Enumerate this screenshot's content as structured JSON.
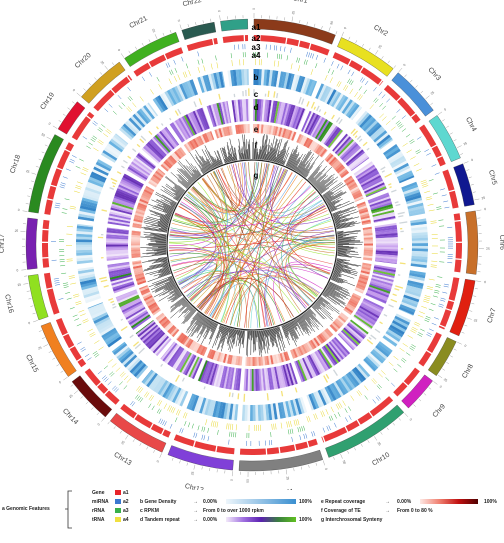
{
  "chromosomes": [
    {
      "name": "Chr1",
      "length": 55
    },
    {
      "name": "Chr2",
      "length": 40
    },
    {
      "name": "Chr3",
      "length": 34
    },
    {
      "name": "Chr4",
      "length": 32
    },
    {
      "name": "Chr5",
      "length": 28
    },
    {
      "name": "Chr6",
      "length": 42
    },
    {
      "name": "Chr7",
      "length": 38
    },
    {
      "name": "Chr8",
      "length": 26
    },
    {
      "name": "Chr9",
      "length": 24
    },
    {
      "name": "Chr10",
      "length": 58
    },
    {
      "name": "Chr11",
      "length": 56
    },
    {
      "name": "Chr12",
      "length": 44
    },
    {
      "name": "Chr13",
      "length": 40
    },
    {
      "name": "Chr14",
      "length": 32
    },
    {
      "name": "Chr15",
      "length": 38
    },
    {
      "name": "Chr16",
      "length": 30
    },
    {
      "name": "Chr17",
      "length": 34
    },
    {
      "name": "Chr18",
      "length": 54
    },
    {
      "name": "Chr19",
      "length": 22
    },
    {
      "name": "Chr20",
      "length": 34
    },
    {
      "name": "Chr21",
      "length": 38
    },
    {
      "name": "Chr22",
      "length": 22
    },
    {
      "name": "Chr23",
      "length": 18
    }
  ],
  "chromosome_colors": [
    "#8b3a1a",
    "#e8e020",
    "#4a90d9",
    "#5ed8d0",
    "#101890",
    "#c8702a",
    "#e02010",
    "#8a8c20",
    "#d020c0",
    "#30a070",
    "#808080",
    "#8040d8",
    "#e84848",
    "#6a0c0c",
    "#f08020",
    "#90e020",
    "#7820b0",
    "#2a8a20",
    "#e01030",
    "#d0a020",
    "#40b020",
    "#2a5a50",
    "#30a088"
  ],
  "track_labels": [
    "a1",
    "a2",
    "a3",
    "a4",
    "b",
    "c",
    "d",
    "e",
    "f",
    "g"
  ],
  "legend": {
    "genomic_features": "a  Genomic Features",
    "feature_rows": [
      {
        "name": "Gene",
        "code": "a1",
        "color": "#e8232a"
      },
      {
        "name": "miRNA",
        "code": "a2",
        "color": "#3a78d0"
      },
      {
        "name": "rRNA",
        "code": "a3",
        "color": "#38b04a"
      },
      {
        "name": "tRNA",
        "code": "a4",
        "color": "#f0e040"
      }
    ],
    "gene_density": {
      "label": "b  Gene Density",
      "arrow": "→",
      "min": "0.00%",
      "max": "100%"
    },
    "rpkm": {
      "label": "c  RPKM",
      "arrow": "→",
      "text": "From 0 to over 1000 rpkm"
    },
    "tandem": {
      "label": "d  Tandem repeat",
      "arrow": "→",
      "min": "0.00%",
      "max": "100%"
    },
    "repeat_cov": {
      "label": "e  Repeat coverage",
      "arrow": "→",
      "min": "0.00%",
      "max": "100%"
    },
    "te_cov": {
      "label": "f  Coverage of TE",
      "arrow": "→",
      "text": "From 0 to  80 %"
    },
    "synteny": {
      "label": "g  Interchrosomal Synteny"
    }
  }
}
